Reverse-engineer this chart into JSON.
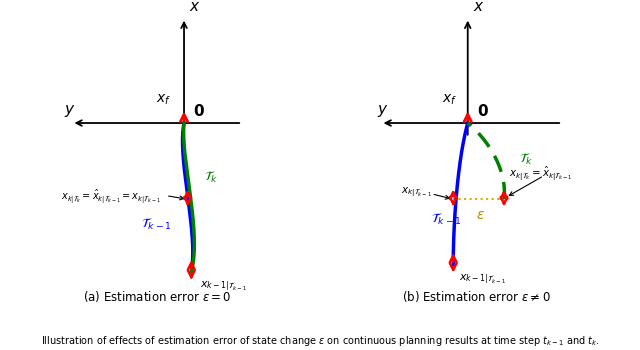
{
  "fig_width": 6.4,
  "fig_height": 3.5,
  "dpi": 100,
  "bg_color": "#ffffff",
  "caption": "Illustration of effects of estimation error of state change $\\varepsilon$ on continuous planning results at time step $t_{k-1}$ and $t_k$.",
  "panel_a_title": "(a) Estimation error $\\varepsilon = 0$",
  "panel_b_title": "(b) Estimation error $\\varepsilon \\neq 0$"
}
